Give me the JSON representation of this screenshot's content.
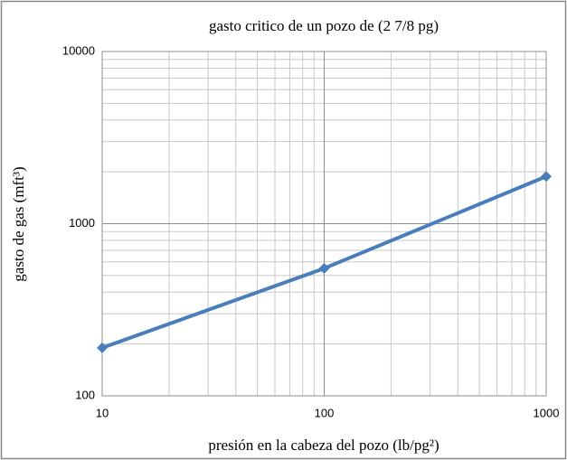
{
  "chart_data": {
    "type": "line",
    "title": "gasto critico de un pozo de (2 7/8 pg)",
    "x_label": "presión en la cabeza del pozo (lb/pg²)",
    "y_label": "gasto de gas (mft³)",
    "x": [
      10,
      100,
      1000
    ],
    "series": [
      {
        "name": "gasto",
        "color": "#4a7ebb",
        "values": [
          190,
          550,
          1880
        ]
      }
    ],
    "xlim": [
      10,
      1000
    ],
    "xticks": [
      10,
      100,
      1000
    ],
    "ylim": [
      100,
      10000
    ],
    "yticks": [
      100,
      1000,
      10000
    ],
    "xlog": true,
    "ylog": true,
    "grid": true,
    "minor_grid": true,
    "legend": false
  }
}
